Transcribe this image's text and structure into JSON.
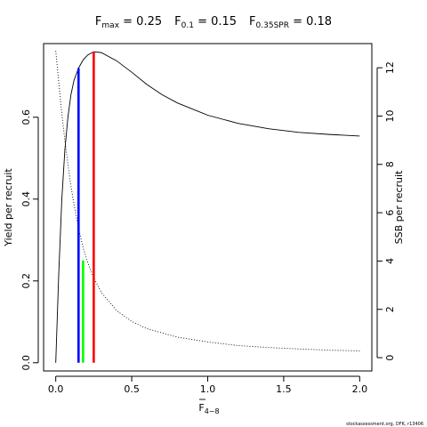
{
  "chart_data": {
    "type": "line",
    "title": {
      "fmax": {
        "main": "F",
        "sub": "max",
        "value": " = 0.25"
      },
      "f01": {
        "main": "F",
        "sub": "0.1",
        "value": " = 0.15"
      },
      "f35": {
        "main": "F",
        "sub": "0.35SPR",
        "value": " = 0.18"
      }
    },
    "xlabel": {
      "main": "F",
      "sub": "4−8"
    },
    "ylabel_left": "Yield per recruit",
    "ylabel_right": "SSB per recruit",
    "xlim": [
      -0.08,
      2.08
    ],
    "ylim_left": [
      -0.02,
      0.78
    ],
    "ylim_right": [
      -0.55,
      13.0
    ],
    "x_ticks": [
      0.0,
      0.5,
      1.0,
      1.5,
      2.0
    ],
    "x_tick_labels": [
      "0.0",
      "0.5",
      "1.0",
      "1.5",
      "2.0"
    ],
    "y_left_ticks": [
      0.0,
      0.2,
      0.4,
      0.6
    ],
    "y_left_tick_labels": [
      "0.0",
      "0.2",
      "0.4",
      "0.6"
    ],
    "y_right_ticks": [
      0,
      2,
      4,
      6,
      8,
      10,
      12
    ],
    "y_right_tick_labels": [
      "0",
      "2",
      "4",
      "6",
      "8",
      "10",
      "12"
    ],
    "grid": false,
    "series": [
      {
        "style": "solid",
        "color": "#000000",
        "axis": "left",
        "x": [
          0.0,
          0.02,
          0.04,
          0.06,
          0.08,
          0.1,
          0.12,
          0.15,
          0.18,
          0.21,
          0.25,
          0.3,
          0.4,
          0.5,
          0.6,
          0.7,
          0.8,
          1.0,
          1.2,
          1.4,
          1.6,
          1.8,
          2.0
        ],
        "y": [
          0.0,
          0.22,
          0.4,
          0.52,
          0.6,
          0.655,
          0.69,
          0.72,
          0.74,
          0.752,
          0.76,
          0.758,
          0.738,
          0.71,
          0.68,
          0.655,
          0.635,
          0.605,
          0.585,
          0.572,
          0.563,
          0.558,
          0.554
        ]
      },
      {
        "style": "dotted",
        "color": "#000000",
        "axis": "right",
        "x": [
          0.0,
          0.02,
          0.04,
          0.06,
          0.08,
          0.1,
          0.12,
          0.15,
          0.18,
          0.21,
          0.25,
          0.3,
          0.4,
          0.5,
          0.6,
          0.8,
          1.0,
          1.2,
          1.4,
          1.6,
          1.8,
          2.0
        ],
        "y": [
          12.7,
          11.4,
          10.1,
          9.0,
          8.0,
          7.1,
          6.35,
          5.35,
          4.55,
          3.95,
          3.3,
          2.7,
          1.95,
          1.5,
          1.2,
          0.85,
          0.65,
          0.5,
          0.42,
          0.36,
          0.31,
          0.28
        ]
      }
    ],
    "reference_lines": [
      {
        "x": 0.15,
        "y": 0.72,
        "color": "#0000ff"
      },
      {
        "x": 0.18,
        "y": 0.25,
        "color": "#00ff00"
      },
      {
        "x": 0.25,
        "y": 0.76,
        "color": "#ff0000"
      }
    ],
    "footer": "stockassessment.org, DFK, r13406"
  }
}
